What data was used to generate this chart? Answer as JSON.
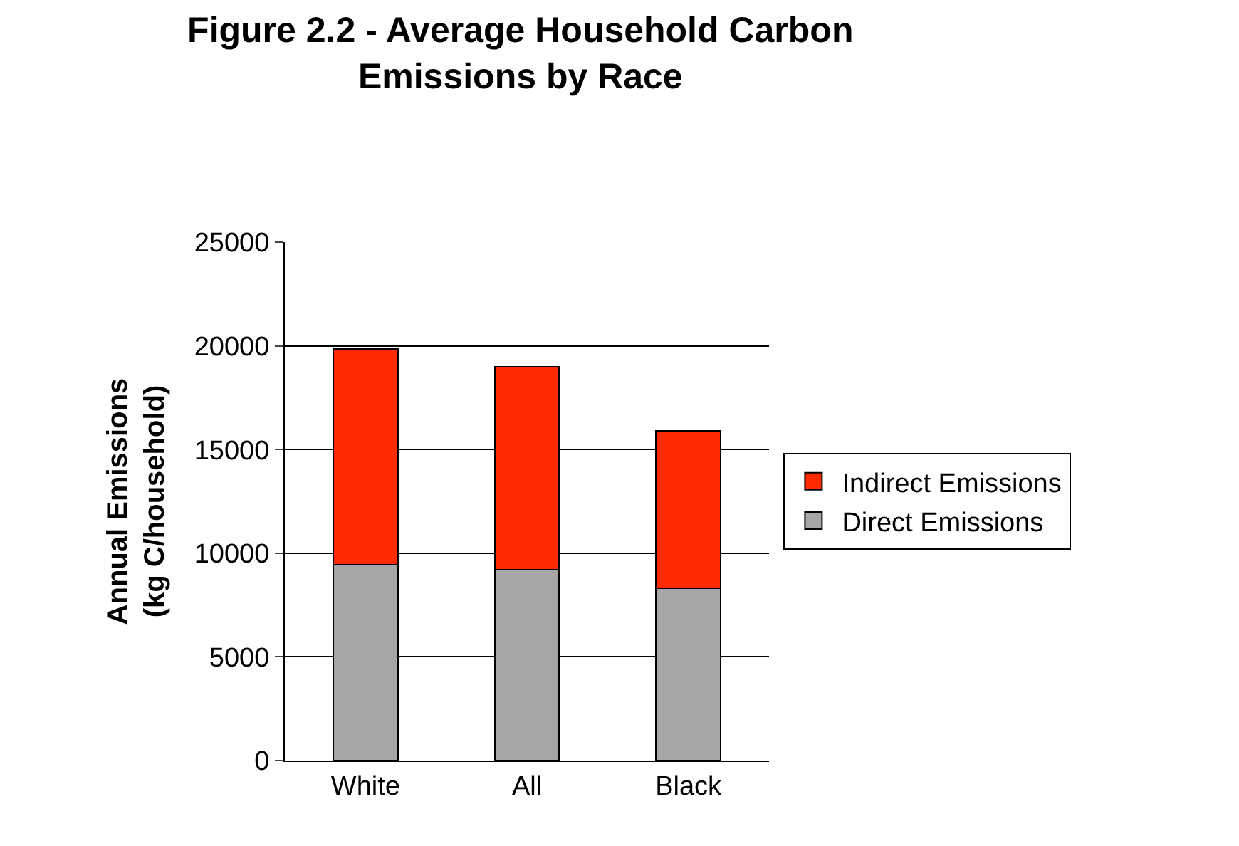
{
  "chart_data": {
    "type": "bar",
    "title": "Figure 2.2 - Average Household Carbon\nEmissions by Race",
    "ylabel": "Annual Emissions\n(kg C/household)",
    "categories": [
      "White",
      "All",
      "Black"
    ],
    "series": [
      {
        "name": "Direct Emissions",
        "color": "#a6a6a6",
        "values": [
          9450,
          9200,
          8300
        ]
      },
      {
        "name": "Indirect Emissions",
        "color": "#ff2a00",
        "values": [
          10400,
          9800,
          7600
        ]
      }
    ],
    "stacked": true,
    "ylim": [
      0,
      25000
    ],
    "yticks": [
      0,
      5000,
      10000,
      15000,
      20000,
      25000
    ],
    "grid": "y",
    "legend": "right"
  }
}
